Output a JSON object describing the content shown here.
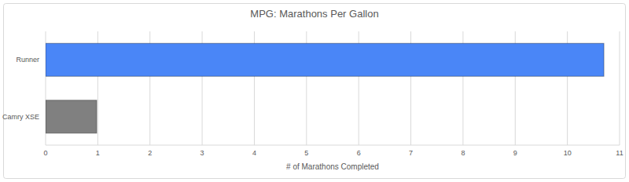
{
  "chart_data": {
    "type": "bar",
    "orientation": "horizontal",
    "title": "MPG: Marathons Per Gallon",
    "x_label": "# of Marathons Completed",
    "categories": [
      "Runner",
      "Camry XSE"
    ],
    "values": [
      10.7,
      0.98
    ],
    "colors": [
      "#4a86f7",
      "#808080"
    ],
    "xlim": [
      0,
      11
    ],
    "xticks": [
      0,
      1,
      2,
      3,
      4,
      5,
      6,
      7,
      8,
      9,
      10,
      11
    ],
    "grid": true
  }
}
